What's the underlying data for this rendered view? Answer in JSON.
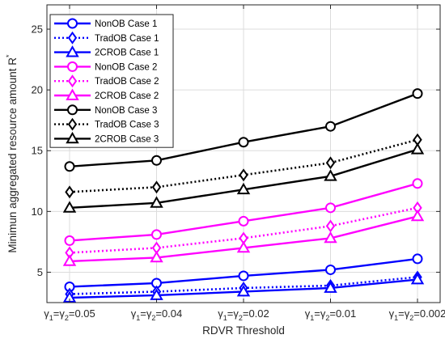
{
  "chart_data": {
    "type": "line",
    "xlabel": "RDVR Threshold",
    "ylabel": "Minimun aggregated resource amount R",
    "ylabel_sup": "*",
    "categories": [
      {
        "main": "γ",
        "s1": "1",
        "eq": "=",
        "s2": "2",
        "val": "=0.05"
      },
      {
        "main": "γ",
        "s1": "1",
        "eq": "=",
        "s2": "2",
        "val": "=0.04"
      },
      {
        "main": "γ",
        "s1": "1",
        "eq": "=",
        "s2": "2",
        "val": "=0.02"
      },
      {
        "main": "γ",
        "s1": "1",
        "eq": "=",
        "s2": "2",
        "val": "=0.01"
      },
      {
        "main": "γ",
        "s1": "1",
        "eq": "=",
        "s2": "2",
        "val": "=0.002"
      }
    ],
    "ylim": [
      2.5,
      27
    ],
    "yticks": [
      5,
      10,
      15,
      20,
      25
    ],
    "grid": true,
    "legend_position": "top-left",
    "series": [
      {
        "name": "NonOB Case 1",
        "values": [
          3.8,
          4.1,
          4.7,
          5.2,
          6.1
        ],
        "color": "#0000ff",
        "marker": "circle",
        "dash": "solid"
      },
      {
        "name": "TradOB Case 1",
        "values": [
          3.2,
          3.4,
          3.7,
          3.9,
          4.6
        ],
        "color": "#0000ff",
        "marker": "diamond",
        "dash": "dotted"
      },
      {
        "name": "2CROB Case 1",
        "values": [
          2.9,
          3.1,
          3.4,
          3.7,
          4.4
        ],
        "color": "#0000ff",
        "marker": "triangle",
        "dash": "solid"
      },
      {
        "name": "NonOB Case 2",
        "values": [
          7.6,
          8.1,
          9.2,
          10.3,
          12.3
        ],
        "color": "#ff00ff",
        "marker": "circle",
        "dash": "solid"
      },
      {
        "name": "TradOB Case 2",
        "values": [
          6.6,
          7.0,
          7.8,
          8.8,
          10.3
        ],
        "color": "#ff00ff",
        "marker": "diamond",
        "dash": "dotted"
      },
      {
        "name": "2CROB Case 2",
        "values": [
          5.9,
          6.2,
          7.0,
          7.8,
          9.6
        ],
        "color": "#ff00ff",
        "marker": "triangle",
        "dash": "solid"
      },
      {
        "name": "NonOB Case 3",
        "values": [
          13.7,
          14.2,
          15.7,
          17.0,
          19.7
        ],
        "color": "#000000",
        "marker": "circle",
        "dash": "solid"
      },
      {
        "name": "TradOB Case 3",
        "values": [
          11.6,
          12.0,
          13.0,
          14.0,
          15.9
        ],
        "color": "#000000",
        "marker": "diamond",
        "dash": "dotted"
      },
      {
        "name": "2CROB Case 3",
        "values": [
          10.3,
          10.7,
          11.8,
          12.9,
          15.1
        ],
        "color": "#000000",
        "marker": "triangle",
        "dash": "solid"
      }
    ]
  }
}
